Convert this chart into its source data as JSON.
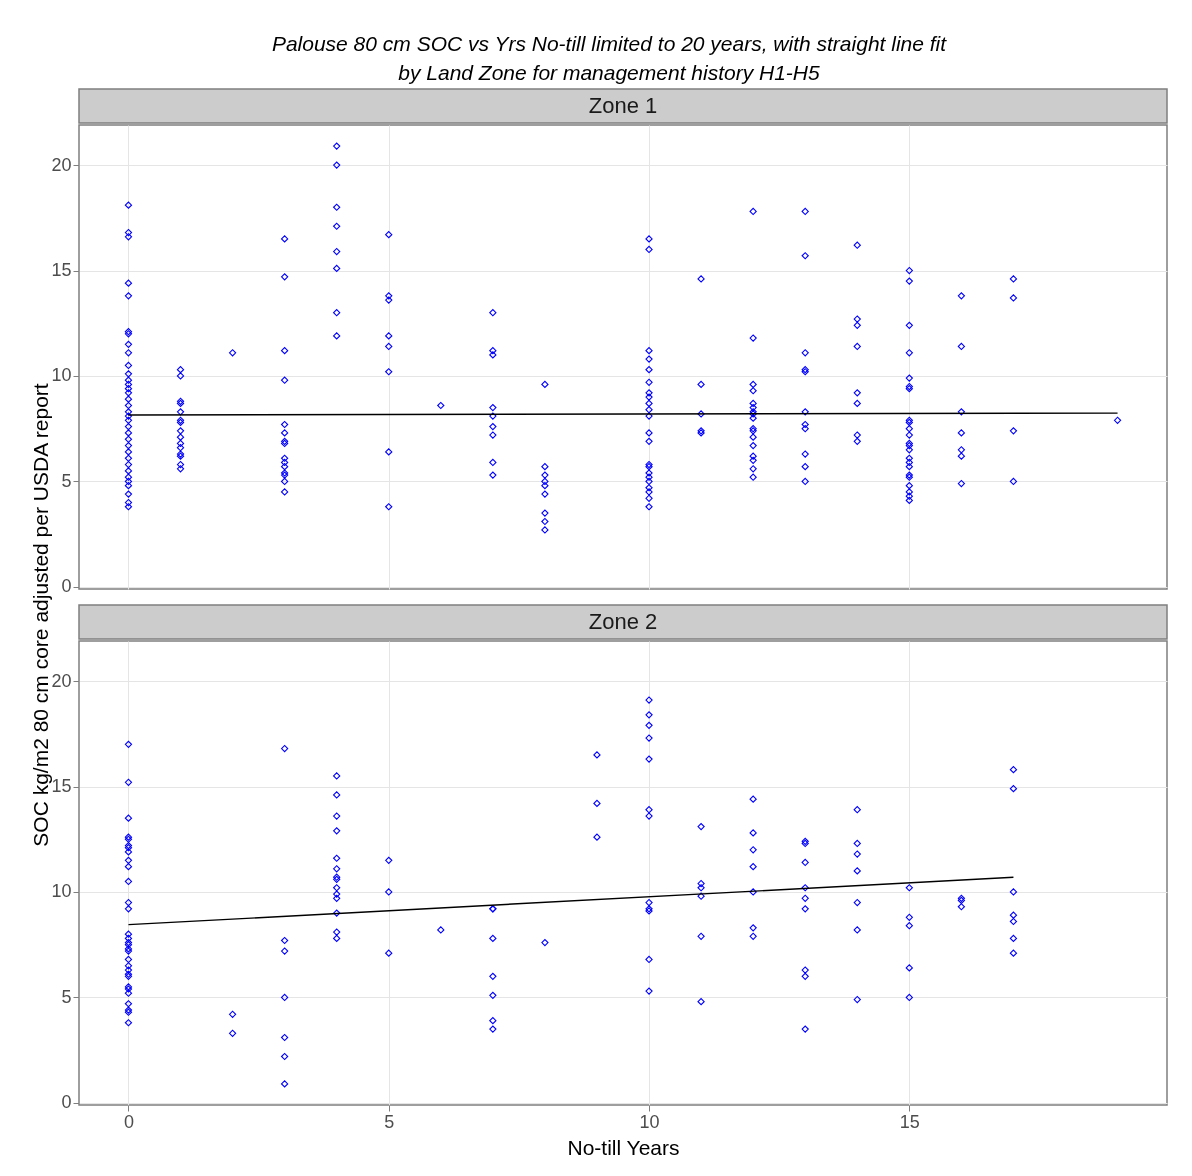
{
  "chart_data": [
    {
      "type": "scatter",
      "title": "Palouse 80 cm SOC vs Yrs No-till limited to 20 years, with straight line fit\nby Land Zone for management history H1-H5",
      "subtitle": "Zone 1",
      "ylabel": "SOC kg/m2 80 cm core adjusted per USDA report",
      "xlim": [
        -0.95,
        19.95
      ],
      "ylim": [
        -0.1,
        21.9
      ],
      "xticks": [
        0,
        5,
        10,
        15
      ],
      "yticks": [
        0,
        5,
        10,
        15,
        20
      ],
      "tick_labels": "y",
      "grid": true,
      "series": [
        {
          "color": "#0000ff",
          "marker": "diamond",
          "x": [
            0,
            0,
            0,
            0,
            0,
            0,
            0,
            0,
            0,
            0,
            0,
            0,
            0,
            0,
            0,
            0,
            0,
            0,
            0,
            0,
            0,
            0,
            0,
            0,
            0,
            0,
            0,
            0,
            0,
            0,
            0,
            0,
            0,
            0,
            1,
            1,
            1,
            1,
            1,
            1,
            1,
            1,
            1,
            1,
            1,
            1,
            1,
            1,
            1,
            2,
            3,
            3,
            3,
            3,
            3,
            3,
            3,
            3,
            3,
            3,
            3,
            3,
            3,
            3,
            3,
            4,
            4,
            4,
            4,
            4,
            4,
            4,
            4,
            5,
            5,
            5,
            5,
            5,
            5,
            5,
            5,
            6,
            7,
            7,
            7,
            7,
            7,
            7,
            7,
            7,
            7,
            8,
            8,
            8,
            8,
            8,
            8,
            8,
            8,
            8,
            10,
            10,
            10,
            10,
            10,
            10,
            10,
            10,
            10,
            10,
            10,
            10,
            10,
            10,
            10,
            10,
            10,
            10,
            10,
            10,
            10,
            10,
            11,
            11,
            11,
            11,
            11,
            12,
            12,
            12,
            12,
            12,
            12,
            12,
            12,
            12,
            12,
            12,
            12,
            12,
            12,
            12,
            12,
            12,
            13,
            13,
            13,
            13,
            13,
            13,
            13,
            13,
            13,
            13,
            13,
            14,
            14,
            14,
            14,
            14,
            14,
            14,
            14,
            15,
            15,
            15,
            15,
            15,
            15,
            15,
            15,
            15,
            15,
            15,
            15,
            15,
            15,
            15,
            15,
            15,
            15,
            15,
            15,
            15,
            15,
            15,
            16,
            16,
            16,
            16,
            16,
            16,
            16,
            17,
            17,
            17,
            17,
            19
          ],
          "values": [
            18.1,
            16.8,
            16.6,
            14.4,
            13.8,
            12.1,
            12.0,
            11.5,
            11.1,
            10.5,
            10.1,
            9.8,
            9.6,
            9.4,
            9.2,
            8.9,
            8.6,
            8.3,
            8.1,
            7.9,
            7.6,
            7.3,
            7.0,
            6.7,
            6.4,
            6.1,
            5.8,
            5.5,
            5.2,
            5.0,
            4.8,
            4.4,
            4.0,
            3.8,
            10.3,
            10.0,
            8.8,
            8.7,
            8.3,
            7.9,
            7.8,
            7.4,
            7.1,
            6.8,
            6.6,
            6.3,
            6.2,
            5.8,
            5.6,
            11.1,
            16.5,
            14.7,
            11.2,
            9.8,
            7.7,
            7.3,
            6.9,
            6.8,
            6.1,
            5.9,
            5.7,
            5.4,
            5.3,
            5.0,
            4.5,
            20.9,
            20.0,
            18.0,
            17.1,
            15.9,
            15.1,
            13.0,
            11.9,
            16.7,
            13.8,
            13.6,
            11.9,
            11.4,
            10.2,
            6.4,
            3.8,
            8.6,
            13.0,
            11.2,
            11.0,
            8.5,
            8.1,
            7.6,
            7.2,
            5.9,
            5.3,
            9.6,
            5.7,
            5.3,
            5.0,
            4.8,
            4.4,
            3.5,
            3.1,
            2.7,
            16.5,
            16.0,
            11.2,
            10.8,
            10.3,
            9.7,
            9.2,
            9.0,
            8.7,
            8.4,
            8.1,
            7.3,
            6.9,
            5.8,
            5.7,
            5.4,
            5.2,
            5.0,
            4.7,
            4.5,
            4.2,
            3.8,
            14.6,
            9.6,
            8.2,
            7.4,
            7.3,
            17.8,
            11.8,
            9.6,
            9.3,
            8.7,
            8.5,
            8.3,
            8.2,
            8.0,
            7.5,
            7.4,
            7.1,
            6.7,
            6.2,
            6.0,
            5.6,
            5.2,
            17.8,
            15.7,
            11.1,
            10.3,
            10.2,
            8.3,
            7.7,
            7.5,
            6.3,
            5.7,
            5.0,
            16.2,
            12.7,
            12.4,
            11.4,
            9.2,
            8.7,
            7.2,
            6.9,
            15.0,
            14.5,
            12.4,
            11.1,
            9.9,
            9.5,
            9.4,
            7.9,
            7.8,
            7.5,
            7.2,
            6.8,
            6.7,
            6.5,
            6.1,
            5.9,
            5.7,
            5.3,
            5.2,
            4.8,
            4.5,
            4.3,
            4.1,
            13.8,
            11.4,
            8.3,
            7.3,
            6.5,
            6.2,
            4.9,
            14.6,
            13.7,
            7.4,
            5.0,
            7.9
          ]
        },
        {
          "type": "line",
          "color": "#000000",
          "marker": "none",
          "x": [
            0,
            19
          ],
          "values": [
            8.15,
            8.24
          ]
        }
      ]
    },
    {
      "type": "scatter",
      "subtitle": "Zone 2",
      "xlabel": "No-till Years",
      "xlim": [
        -0.95,
        19.95
      ],
      "ylim": [
        -0.1,
        21.9
      ],
      "xticks": [
        0,
        5,
        10,
        15
      ],
      "yticks": [
        0,
        5,
        10,
        15,
        20
      ],
      "grid": true,
      "series": [
        {
          "color": "#0000ff",
          "marker": "diamond",
          "x": [
            0,
            0,
            0,
            0,
            0,
            0,
            0,
            0,
            0,
            0,
            0,
            0,
            0,
            0,
            0,
            0,
            0,
            0,
            0,
            0,
            0,
            0,
            0,
            0,
            0,
            0,
            0,
            0,
            0,
            0,
            0,
            2,
            2,
            3,
            3,
            3,
            3,
            3,
            3,
            3,
            4,
            4,
            4,
            4,
            4,
            4,
            4,
            4,
            4,
            4,
            4,
            4,
            4,
            4,
            5,
            5,
            5,
            6,
            7,
            7,
            7,
            7,
            7,
            7,
            7,
            8,
            9,
            9,
            9,
            10,
            10,
            10,
            10,
            10,
            10,
            10,
            10,
            10,
            10,
            10,
            10,
            11,
            11,
            11,
            11,
            11,
            11,
            12,
            12,
            12,
            12,
            12,
            12,
            12,
            13,
            13,
            13,
            13,
            13,
            13,
            13,
            13,
            13,
            14,
            14,
            14,
            14,
            14,
            14,
            14,
            15,
            15,
            15,
            15,
            15,
            16,
            16,
            16,
            17,
            17,
            17,
            17,
            17,
            17,
            17
          ],
          "values": [
            17.0,
            15.2,
            13.5,
            12.6,
            12.5,
            12.2,
            12.1,
            11.9,
            11.5,
            11.2,
            10.5,
            9.5,
            9.2,
            8.0,
            7.8,
            7.6,
            7.5,
            7.3,
            7.2,
            6.8,
            6.5,
            6.3,
            6.1,
            6.0,
            5.5,
            5.4,
            5.2,
            4.7,
            4.4,
            4.3,
            3.8,
            4.2,
            3.3,
            16.8,
            7.7,
            7.2,
            5.0,
            3.1,
            2.2,
            0.9,
            15.5,
            14.6,
            13.6,
            12.9,
            11.6,
            11.1,
            10.7,
            10.6,
            10.2,
            9.9,
            9.7,
            9.0,
            8.1,
            7.8,
            11.5,
            10.0,
            7.1,
            8.2,
            9.2,
            9.2,
            7.8,
            6.0,
            5.1,
            3.9,
            3.5,
            7.6,
            16.5,
            14.2,
            12.6,
            19.1,
            18.4,
            17.9,
            17.3,
            16.3,
            13.9,
            13.6,
            9.5,
            9.2,
            9.1,
            6.8,
            5.3,
            13.1,
            10.4,
            10.2,
            9.8,
            7.9,
            4.8,
            14.4,
            12.8,
            12.0,
            11.2,
            10.0,
            8.3,
            7.9,
            12.4,
            12.3,
            11.4,
            10.2,
            9.7,
            9.2,
            6.3,
            6.0,
            3.5,
            13.9,
            12.3,
            11.8,
            11.0,
            9.5,
            8.2,
            4.9,
            10.2,
            8.8,
            8.4,
            6.4,
            5.0,
            9.7,
            9.6,
            9.3,
            15.8,
            14.9,
            10.0,
            8.9,
            8.6,
            7.8,
            7.1
          ]
        },
        {
          "type": "line",
          "color": "#000000",
          "marker": "none",
          "x": [
            0,
            17
          ],
          "values": [
            8.45,
            10.7
          ]
        }
      ]
    }
  ]
}
